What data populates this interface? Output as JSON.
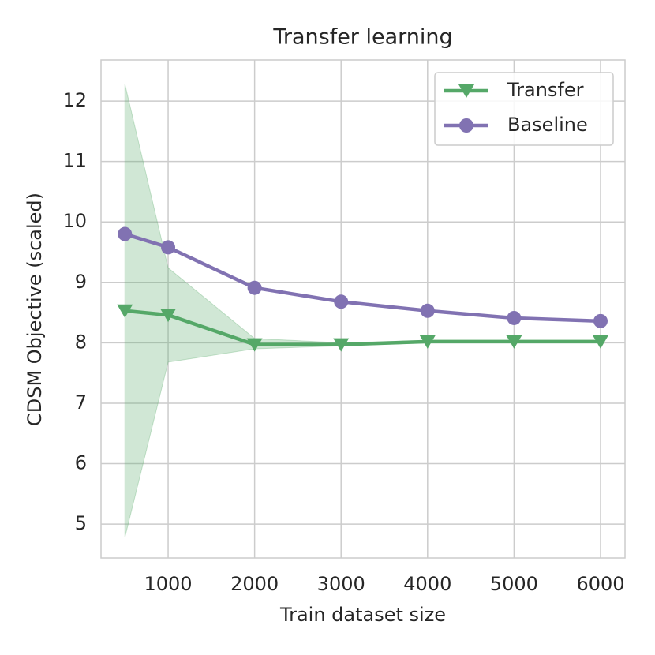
{
  "chart_data": {
    "type": "line",
    "title": "Transfer learning",
    "x_label": "Train dataset size",
    "y_label": "CDSM Objective (scaled)",
    "x": [
      500,
      1000,
      2000,
      3000,
      4000,
      5000,
      6000
    ],
    "series": [
      {
        "name": "Transfer",
        "color": "#55a868",
        "marker": "triangle-down",
        "values": [
          8.53,
          8.46,
          7.97,
          7.97,
          8.02,
          8.02,
          8.02
        ],
        "lower": [
          4.78,
          7.68,
          7.9,
          7.95,
          8.0,
          8.0,
          8.0
        ],
        "upper": [
          12.28,
          9.24,
          8.07,
          8.0,
          8.04,
          8.04,
          8.04
        ]
      },
      {
        "name": "Baseline",
        "color": "#8172b2",
        "marker": "circle",
        "values": [
          9.8,
          9.58,
          8.91,
          8.68,
          8.53,
          8.41,
          8.36
        ]
      }
    ],
    "xlim": [
      224,
      6283
    ],
    "ylim": [
      4.44,
      12.68
    ],
    "xticks": [
      1000,
      2000,
      3000,
      4000,
      5000,
      6000
    ],
    "yticks": [
      5,
      6,
      7,
      8,
      9,
      10,
      11,
      12
    ],
    "grid": true,
    "legend": "upper right"
  }
}
